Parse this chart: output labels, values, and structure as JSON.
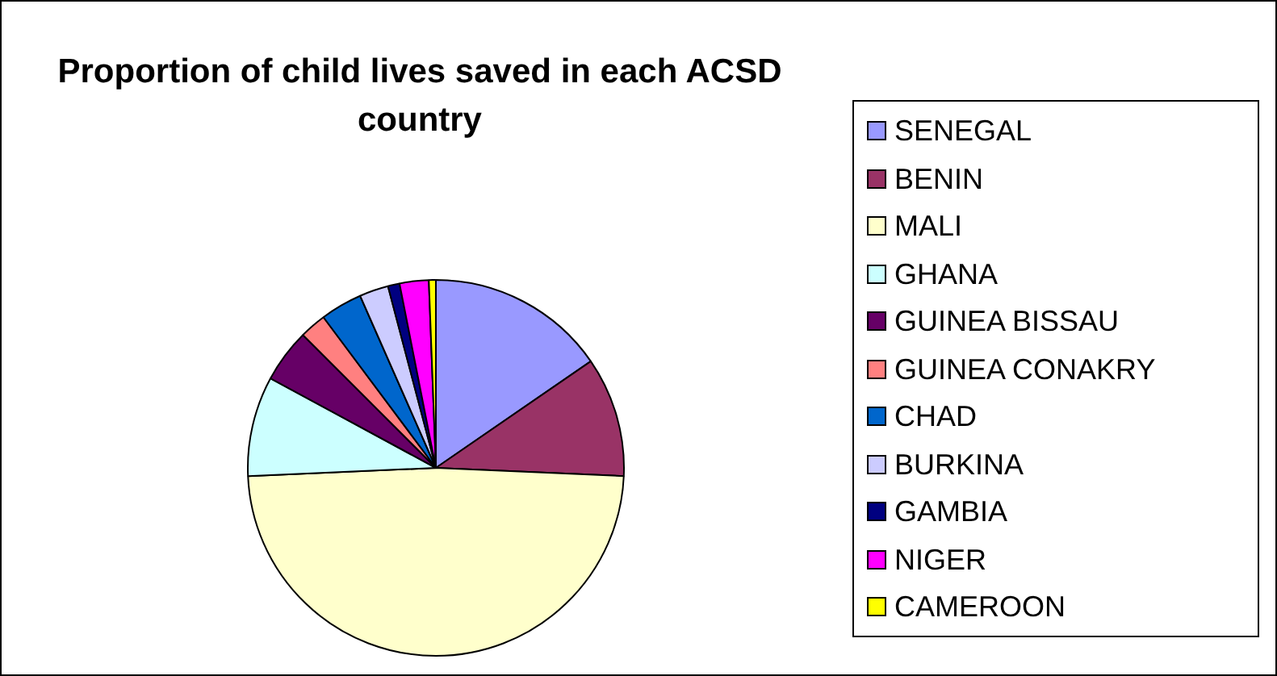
{
  "chart_data": {
    "type": "pie",
    "title": "Proportion of child lives saved in each ACSD country",
    "categories": [
      "SENEGAL",
      "BENIN",
      "MALI",
      "GHANA",
      "GUINEA BISSAU",
      "GUINEA CONAKRY",
      "CHAD",
      "BURKINA",
      "GAMBIA",
      "NIGER",
      "CAMEROON"
    ],
    "values": [
      15.4,
      10.3,
      48.6,
      8.6,
      4.6,
      2.3,
      3.6,
      2.5,
      1.0,
      2.5,
      0.6
    ],
    "colors": [
      "#9999ff",
      "#993366",
      "#ffffcc",
      "#ccffff",
      "#660066",
      "#ff8080",
      "#0066cc",
      "#ccccff",
      "#000080",
      "#ff00ff",
      "#ffff00"
    ],
    "legend": "right"
  }
}
